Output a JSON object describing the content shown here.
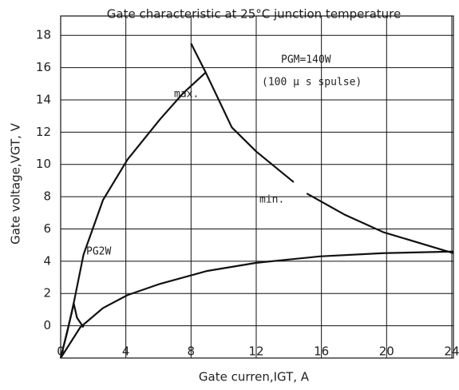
{
  "chart_data": {
    "type": "line",
    "title": "Gate characteristic at 25°C junction temperature",
    "x_label": "Gate curren,IGT,  A",
    "y_label": "Gate voltage,VGT,  V",
    "xlim": [
      0,
      24.1
    ],
    "ylim": [
      -2,
      19.2
    ],
    "xticks": [
      0,
      4,
      8,
      12,
      16,
      20,
      24
    ],
    "yticks": [
      0,
      2,
      4,
      6,
      8,
      10,
      12,
      14,
      16,
      18
    ],
    "grid": true,
    "color": "#111111",
    "series": [
      {
        "x": [
          0,
          0.7,
          1.4,
          2.6,
          4.1,
          6.1,
          7.5,
          8.9
        ],
        "values": [
          -2,
          0.9,
          4.4,
          7.8,
          10.3,
          12.8,
          14.4,
          15.7
        ]
      },
      {
        "x": [
          8,
          8.9,
          10.5,
          12,
          14.3
        ],
        "values": [
          17.5,
          15.7,
          12.3,
          10.8,
          8.9
        ]
      },
      {
        "x": [
          15.1,
          17.4,
          19.8,
          24.1
        ],
        "values": [
          8.2,
          6.9,
          5.8,
          4.5
        ]
      },
      {
        "x": [
          0,
          1.2,
          2.6,
          4.1,
          6.1,
          9,
          12,
          15.9,
          19.8,
          24.1
        ],
        "values": [
          -2,
          -0.1,
          1.1,
          1.9,
          2.6,
          3.4,
          3.9,
          4.3,
          4.5,
          4.6
        ]
      },
      {
        "x": [
          0,
          0.4,
          0.8,
          1.0,
          1.4
        ],
        "values": [
          -2,
          -0.4,
          1.4,
          0.5,
          -0.1
        ]
      }
    ],
    "annotations": [
      "max.",
      "min.",
      "PGM=140W",
      "(100 μ s spulse)",
      "PG2W"
    ]
  }
}
